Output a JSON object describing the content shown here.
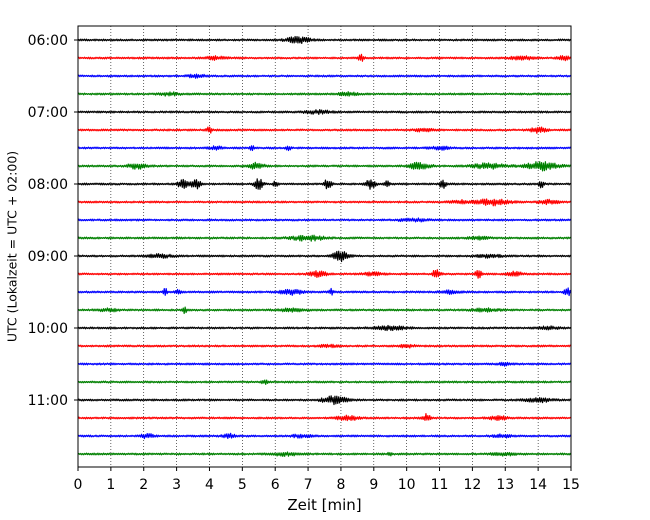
{
  "chart_data": {
    "type": "line",
    "title": "",
    "xlabel": "Zeit  [min]",
    "ylabel": "UTC (Lokalzeit = UTC + 02:00)",
    "xlim": [
      0,
      15
    ],
    "x_ticks": [
      "0",
      "1",
      "2",
      "3",
      "4",
      "5",
      "6",
      "7",
      "8",
      "9",
      "10",
      "11",
      "12",
      "13",
      "14",
      "15"
    ],
    "y_ticks": [
      {
        "label": "06:00",
        "trace": 0
      },
      {
        "label": "07:00",
        "trace": 4
      },
      {
        "label": "08:00",
        "trace": 8
      },
      {
        "label": "09:00",
        "trace": 12
      },
      {
        "label": "10:00",
        "trace": 16
      },
      {
        "label": "11:00",
        "trace": 20
      }
    ],
    "grid": "vertical dotted",
    "trace_minutes": 15,
    "colors": [
      "#000000",
      "#ff0000",
      "#0000ff",
      "#008000"
    ],
    "series": [
      {
        "start": "06:00",
        "color": "#000000",
        "bursts": [
          {
            "t": 6.7,
            "a": 3,
            "w": 0.35
          }
        ]
      },
      {
        "start": "06:15",
        "color": "#ff0000",
        "bursts": [
          {
            "t": 8.6,
            "a": 4,
            "w": 0.08
          },
          {
            "t": 4.2,
            "a": 1.5,
            "w": 0.3
          },
          {
            "t": 13.5,
            "a": 1.5,
            "w": 0.4
          },
          {
            "t": 14.8,
            "a": 2,
            "w": 0.2
          }
        ]
      },
      {
        "start": "06:30",
        "color": "#0000ff",
        "bursts": [
          {
            "t": 3.6,
            "a": 1.4,
            "w": 0.3
          }
        ]
      },
      {
        "start": "06:45",
        "color": "#008000",
        "bursts": [
          {
            "t": 2.8,
            "a": 1.5,
            "w": 0.3
          },
          {
            "t": 8.2,
            "a": 1.5,
            "w": 0.3
          }
        ]
      },
      {
        "start": "07:00",
        "color": "#000000",
        "bursts": [
          {
            "t": 7.3,
            "a": 1.5,
            "w": 0.4
          }
        ]
      },
      {
        "start": "07:15",
        "color": "#ff0000",
        "bursts": [
          {
            "t": 4.0,
            "a": 3,
            "w": 0.08
          },
          {
            "t": 14.0,
            "a": 2.5,
            "w": 0.25
          },
          {
            "t": 10.5,
            "a": 1.2,
            "w": 0.3
          }
        ]
      },
      {
        "start": "07:30",
        "color": "#0000ff",
        "bursts": [
          {
            "t": 4.2,
            "a": 1.5,
            "w": 0.2
          },
          {
            "t": 5.3,
            "a": 2.5,
            "w": 0.07
          },
          {
            "t": 6.4,
            "a": 2.5,
            "w": 0.07
          },
          {
            "t": 11.0,
            "a": 1.5,
            "w": 0.3
          }
        ]
      },
      {
        "start": "07:45",
        "color": "#008000",
        "bursts": [
          {
            "t": 1.8,
            "a": 2.5,
            "w": 0.3
          },
          {
            "t": 5.4,
            "a": 3,
            "w": 0.25
          },
          {
            "t": 10.4,
            "a": 3.5,
            "w": 0.3
          },
          {
            "t": 12.5,
            "a": 2.5,
            "w": 0.5
          },
          {
            "t": 14.1,
            "a": 4,
            "w": 0.5
          }
        ]
      },
      {
        "start": "08:00",
        "color": "#000000",
        "bursts": [
          {
            "t": 3.2,
            "a": 5.5,
            "w": 0.15
          },
          {
            "t": 3.6,
            "a": 4.5,
            "w": 0.15
          },
          {
            "t": 5.5,
            "a": 6,
            "w": 0.12
          },
          {
            "t": 6.0,
            "a": 3,
            "w": 0.07
          },
          {
            "t": 7.6,
            "a": 5,
            "w": 0.1
          },
          {
            "t": 8.9,
            "a": 4.5,
            "w": 0.15
          },
          {
            "t": 9.4,
            "a": 3,
            "w": 0.07
          },
          {
            "t": 11.1,
            "a": 4,
            "w": 0.1
          },
          {
            "t": 14.1,
            "a": 3.5,
            "w": 0.08
          }
        ]
      },
      {
        "start": "08:15",
        "color": "#ff0000",
        "bursts": [
          {
            "t": 12.6,
            "a": 3,
            "w": 0.5
          },
          {
            "t": 11.6,
            "a": 1.5,
            "w": 0.3
          },
          {
            "t": 14.3,
            "a": 2,
            "w": 0.3
          }
        ]
      },
      {
        "start": "08:30",
        "color": "#0000ff",
        "bursts": [
          {
            "t": 10.2,
            "a": 1.5,
            "w": 0.4
          }
        ]
      },
      {
        "start": "08:45",
        "color": "#008000",
        "bursts": [
          {
            "t": 7.0,
            "a": 2.5,
            "w": 0.5
          },
          {
            "t": 12.2,
            "a": 1.2,
            "w": 0.3
          }
        ]
      },
      {
        "start": "09:00",
        "color": "#000000",
        "bursts": [
          {
            "t": 8.0,
            "a": 5,
            "w": 0.25
          },
          {
            "t": 2.5,
            "a": 1.5,
            "w": 0.4
          },
          {
            "t": 12.5,
            "a": 1.3,
            "w": 0.4
          }
        ]
      },
      {
        "start": "09:15",
        "color": "#ff0000",
        "bursts": [
          {
            "t": 7.3,
            "a": 3,
            "w": 0.25
          },
          {
            "t": 10.9,
            "a": 4,
            "w": 0.12
          },
          {
            "t": 12.2,
            "a": 5,
            "w": 0.1
          },
          {
            "t": 13.3,
            "a": 2.5,
            "w": 0.2
          },
          {
            "t": 9.0,
            "a": 1.5,
            "w": 0.3
          }
        ]
      },
      {
        "start": "09:30",
        "color": "#0000ff",
        "bursts": [
          {
            "t": 2.65,
            "a": 4,
            "w": 0.06
          },
          {
            "t": 3.05,
            "a": 2,
            "w": 0.1
          },
          {
            "t": 6.5,
            "a": 2.5,
            "w": 0.35
          },
          {
            "t": 7.7,
            "a": 3,
            "w": 0.08
          },
          {
            "t": 14.9,
            "a": 4,
            "w": 0.1
          },
          {
            "t": 11.3,
            "a": 1.5,
            "w": 0.3
          }
        ]
      },
      {
        "start": "09:45",
        "color": "#008000",
        "bursts": [
          {
            "t": 3.25,
            "a": 3,
            "w": 0.06
          },
          {
            "t": 0.9,
            "a": 1.5,
            "w": 0.3
          },
          {
            "t": 6.5,
            "a": 1.3,
            "w": 0.4
          },
          {
            "t": 12.4,
            "a": 1.3,
            "w": 0.4
          }
        ]
      },
      {
        "start": "10:00",
        "color": "#000000",
        "bursts": [
          {
            "t": 9.5,
            "a": 1.8,
            "w": 0.5
          },
          {
            "t": 14.3,
            "a": 1.3,
            "w": 0.3
          }
        ]
      },
      {
        "start": "10:15",
        "color": "#ff0000",
        "bursts": [
          {
            "t": 7.6,
            "a": 1.2,
            "w": 0.3
          },
          {
            "t": 10.0,
            "a": 1.2,
            "w": 0.3
          }
        ]
      },
      {
        "start": "10:30",
        "color": "#0000ff",
        "bursts": [
          {
            "t": 13.0,
            "a": 1.3,
            "w": 0.2
          }
        ]
      },
      {
        "start": "10:45",
        "color": "#008000",
        "bursts": [
          {
            "t": 5.7,
            "a": 2.2,
            "w": 0.1
          }
        ]
      },
      {
        "start": "11:00",
        "color": "#000000",
        "bursts": [
          {
            "t": 7.8,
            "a": 4,
            "w": 0.35
          },
          {
            "t": 14.0,
            "a": 2,
            "w": 0.4
          }
        ]
      },
      {
        "start": "11:15",
        "color": "#ff0000",
        "bursts": [
          {
            "t": 8.2,
            "a": 2.5,
            "w": 0.3
          },
          {
            "t": 10.6,
            "a": 3.5,
            "w": 0.12
          },
          {
            "t": 12.8,
            "a": 1.8,
            "w": 0.3
          }
        ]
      },
      {
        "start": "11:30",
        "color": "#0000ff",
        "bursts": [
          {
            "t": 2.1,
            "a": 2,
            "w": 0.2
          },
          {
            "t": 4.6,
            "a": 2,
            "w": 0.2
          },
          {
            "t": 6.8,
            "a": 1.5,
            "w": 0.3
          },
          {
            "t": 12.9,
            "a": 1.3,
            "w": 0.3
          }
        ]
      },
      {
        "start": "11:45",
        "color": "#008000",
        "bursts": [
          {
            "t": 9.5,
            "a": 2.5,
            "w": 0.06
          },
          {
            "t": 6.3,
            "a": 1.5,
            "w": 0.4
          },
          {
            "t": 13.0,
            "a": 1.2,
            "w": 0.4
          }
        ]
      }
    ]
  }
}
